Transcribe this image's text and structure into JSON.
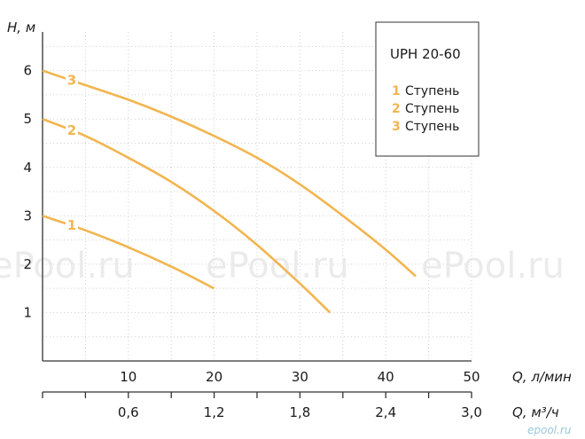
{
  "chart_data": {
    "type": "line",
    "title": "",
    "ylabel": "H, м",
    "xlabel": "Q, л/мин",
    "xlabel2": "Q, м³/ч",
    "ylim": [
      0,
      6.8
    ],
    "xlim": [
      0,
      50
    ],
    "yticks": [
      "1",
      "2",
      "3",
      "4",
      "5",
      "6"
    ],
    "yticks_values": [
      1,
      2,
      3,
      4,
      5,
      6
    ],
    "xticks": [
      "10",
      "20",
      "30",
      "40",
      "50"
    ],
    "xticks_values": [
      10,
      20,
      30,
      40,
      50
    ],
    "xticks2": [
      "0,6",
      "1,2",
      "1,8",
      "2,4",
      "3,0"
    ],
    "xticks2_values": [
      10,
      20,
      30,
      40,
      50
    ],
    "grid": true,
    "legend": {
      "title": "UPH 20-60",
      "position": "top-right",
      "items": [
        {
          "num": "1",
          "text": "Ступень"
        },
        {
          "num": "2",
          "text": "Ступень"
        },
        {
          "num": "3",
          "text": "Ступень"
        }
      ]
    },
    "series": [
      {
        "name": "1 Ступень",
        "label": "1",
        "x": [
          0,
          5,
          10,
          15,
          20
        ],
        "y": [
          3.0,
          2.7,
          2.35,
          1.95,
          1.5
        ]
      },
      {
        "name": "2 Ступень",
        "label": "2",
        "x": [
          0,
          5,
          10,
          15,
          20,
          25,
          30,
          33.5
        ],
        "y": [
          5.0,
          4.65,
          4.2,
          3.7,
          3.1,
          2.4,
          1.6,
          1.0
        ]
      },
      {
        "name": "3 Ступень",
        "label": "3",
        "x": [
          0,
          5,
          10,
          15,
          20,
          25,
          30,
          35,
          40,
          43.5
        ],
        "y": [
          6.0,
          5.7,
          5.4,
          5.05,
          4.65,
          4.2,
          3.65,
          3.0,
          2.3,
          1.75
        ]
      }
    ],
    "color": "#f2b550"
  },
  "watermarks": [
    "ePool.ru",
    "ePool.ru",
    "ePool.ru"
  ],
  "logo": "epool.ru"
}
